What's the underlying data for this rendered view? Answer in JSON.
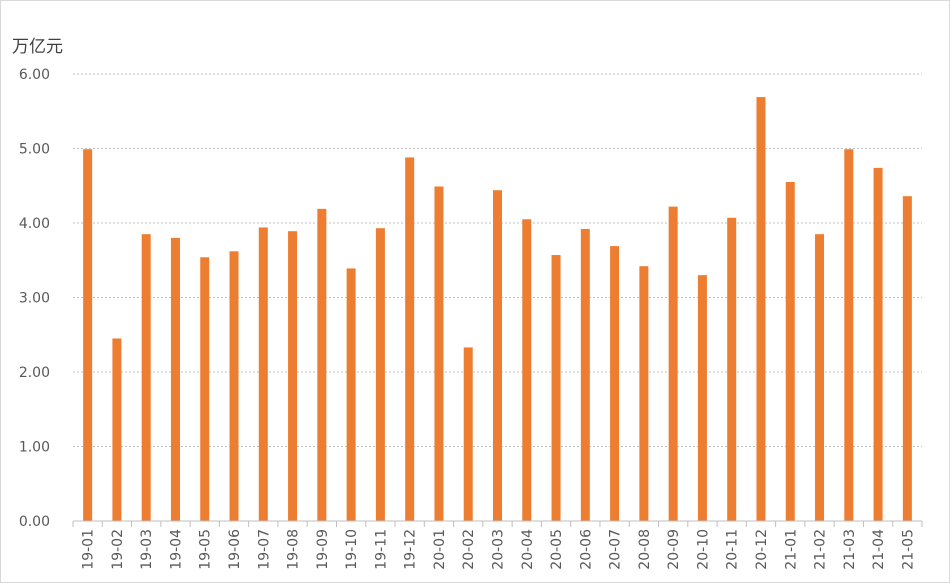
{
  "chart_data": {
    "type": "bar",
    "ylabel": "万亿元",
    "ylim": [
      0,
      6
    ],
    "yticks": [
      "0.00",
      "1.00",
      "2.00",
      "3.00",
      "4.00",
      "5.00",
      "6.00"
    ],
    "grid": true,
    "legend": "none",
    "bar_color": "#ED7D31",
    "categories": [
      "19-01",
      "19-02",
      "19-03",
      "19-04",
      "19-05",
      "19-06",
      "19-07",
      "19-08",
      "19-09",
      "19-10",
      "19-11",
      "19-12",
      "20-01",
      "20-02",
      "20-03",
      "20-04",
      "20-05",
      "20-06",
      "20-07",
      "20-08",
      "20-09",
      "20-10",
      "20-11",
      "20-12",
      "21-01",
      "21-02",
      "21-03",
      "21-04",
      "21-05"
    ],
    "values": [
      4.99,
      2.45,
      3.85,
      3.8,
      3.54,
      3.62,
      3.94,
      3.89,
      4.19,
      3.39,
      3.93,
      4.88,
      4.49,
      2.33,
      4.44,
      4.05,
      3.57,
      3.92,
      3.69,
      3.42,
      4.22,
      3.3,
      4.07,
      5.69,
      4.55,
      3.85,
      4.99,
      4.74,
      4.36
    ]
  }
}
